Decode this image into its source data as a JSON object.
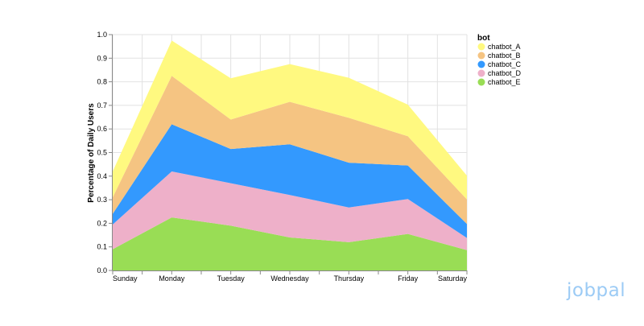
{
  "chart_data": {
    "type": "area",
    "stacked": true,
    "xlabel": "",
    "ylabel": "Percentage of Daily Users",
    "categories": [
      "Sunday",
      "Monday",
      "Tuesday",
      "Wednesday",
      "Thursday",
      "Friday",
      "Saturday"
    ],
    "ylim": [
      0,
      1.0
    ],
    "yticks": [
      "0.0",
      "0.1",
      "0.2",
      "0.3",
      "0.4",
      "0.5",
      "0.6",
      "0.7",
      "0.8",
      "0.9",
      "1.0"
    ],
    "grid": true,
    "legend": {
      "title": "bot",
      "placement": "right"
    },
    "series": [
      {
        "name": "chatbot_A",
        "color": "#fff980",
        "values": [
          0.11,
          0.15,
          0.175,
          0.16,
          0.17,
          0.134,
          0.101
        ]
      },
      {
        "name": "chatbot_B",
        "color": "#f5c482",
        "values": [
          0.07,
          0.205,
          0.125,
          0.18,
          0.19,
          0.124,
          0.104
        ]
      },
      {
        "name": "chatbot_C",
        "color": "#3399fe",
        "values": [
          0.045,
          0.2,
          0.145,
          0.215,
          0.19,
          0.142,
          0.059
        ]
      },
      {
        "name": "chatbot_D",
        "color": "#eeb0c9",
        "values": [
          0.105,
          0.195,
          0.18,
          0.18,
          0.147,
          0.148,
          0.052
        ]
      },
      {
        "name": "chatbot_E",
        "color": "#99dd55",
        "values": [
          0.09,
          0.225,
          0.19,
          0.14,
          0.12,
          0.155,
          0.086
        ]
      }
    ]
  },
  "logo": {
    "text": "jobpal",
    "color": "#9ccbf5"
  }
}
